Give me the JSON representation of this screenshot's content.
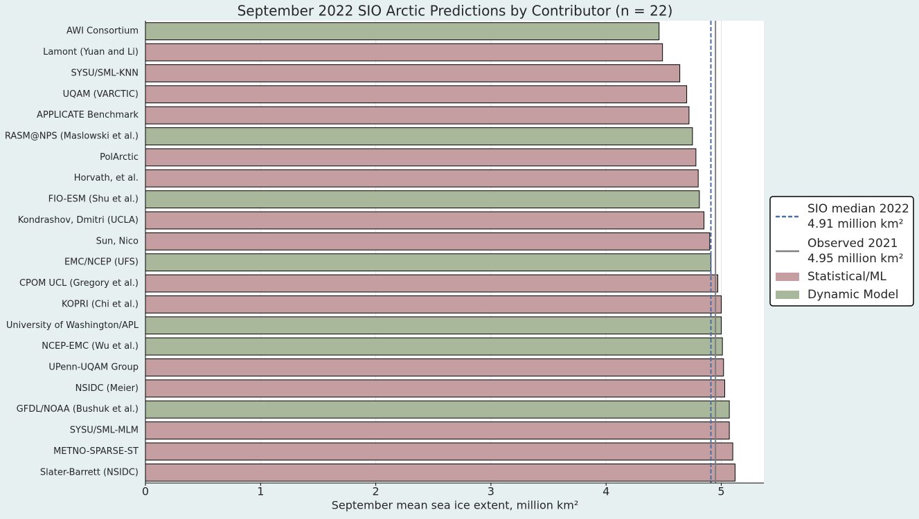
{
  "chart_data": {
    "type": "barh",
    "title": "September 2022 SIO Arctic Predictions by Contributor (n = 22)",
    "x_label": "September mean sea ice extent, million km²",
    "categories": [
      "AWI Consortium",
      "Lamont (Yuan and Li)",
      "SYSU/SML-KNN",
      "UQAM (VARCTIC)",
      "APPLICATE Benchmark",
      "RASM@NPS (Maslowski et al.)",
      "PolArctic",
      "Horvath, et al.",
      "FIO-ESM (Shu et al.)",
      "Kondrashov, Dmitri (UCLA)",
      "Sun, Nico",
      "EMC/NCEP (UFS)",
      "CPOM UCL (Gregory et al.)",
      "KOPRI (Chi et al.)",
      "University of Washington/APL",
      "NCEP-EMC (Wu et al.)",
      "UPenn-UQAM Group",
      "NSIDC (Meier)",
      "GFDL/NOAA (Bushuk et al.)",
      "SYSU/SML-MLM",
      "METNO-SPARSE-ST",
      "Slater-Barrett (NSIDC)"
    ],
    "series": [
      {
        "name": "Statistical/ML",
        "color": "#c49ea0",
        "values": [
          null,
          4.49,
          4.64,
          4.7,
          4.72,
          null,
          4.78,
          4.8,
          null,
          4.85,
          4.9,
          null,
          4.97,
          5.0,
          null,
          null,
          5.02,
          5.03,
          null,
          5.07,
          5.1,
          5.12
        ]
      },
      {
        "name": "Dynamic Model",
        "color": "#a9b79a",
        "values": [
          4.46,
          null,
          null,
          null,
          null,
          4.75,
          null,
          null,
          4.81,
          null,
          null,
          4.91,
          null,
          null,
          5.0,
          5.01,
          null,
          null,
          5.07,
          null,
          null,
          null
        ]
      }
    ],
    "reference_lines": [
      {
        "label": [
          "SIO median 2022",
          "4.91 million km²"
        ],
        "value": 4.91,
        "color": "#4a6fa5",
        "dashed": true
      },
      {
        "label": [
          "Observed 2021",
          "4.95 million km²"
        ],
        "value": 4.95,
        "color": "#7f7f7f",
        "dashed": false
      }
    ],
    "xlim": [
      0,
      5.37
    ],
    "xticks": [
      0,
      1,
      2,
      3,
      4,
      5
    ],
    "grid": true,
    "legend": "right"
  }
}
